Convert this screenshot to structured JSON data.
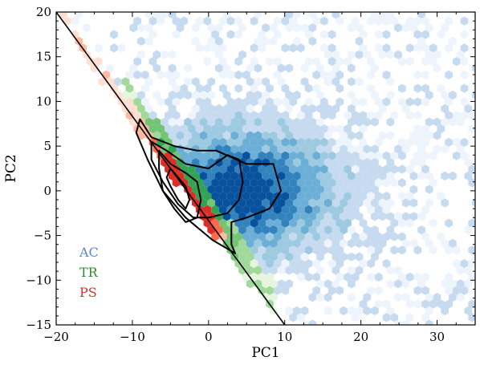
{
  "chart_data": {
    "type": "scatter",
    "xlabel": "PC1",
    "ylabel": "PC2",
    "xlim": [
      -20,
      35
    ],
    "ylim": [
      -15,
      20
    ],
    "xticks": [
      -20,
      -10,
      0,
      10,
      20,
      30
    ],
    "xtick_labels": [
      "−20",
      "−10",
      "0",
      "10",
      "20",
      "30"
    ],
    "yticks": [
      -15,
      -10,
      -5,
      0,
      5,
      10,
      15,
      20
    ],
    "ytick_labels": [
      "−15",
      "−10",
      "−5",
      "0",
      "5",
      "10",
      "15",
      "20"
    ],
    "grid": false,
    "legend_position": "lower-left",
    "legend": [
      {
        "label": "AC",
        "color": "#5a86d6"
      },
      {
        "label": "TR",
        "color": "#2f8a2f"
      },
      {
        "label": "PS",
        "color": "#e0302a"
      }
    ],
    "boundary_line": {
      "x": [
        -20,
        10
      ],
      "y": [
        20,
        -15
      ],
      "color": "#000000"
    },
    "series": [
      {
        "name": "AC",
        "kind": "hexbin-density",
        "colormap": "Blues",
        "colors": [
          "#eef4fb",
          "#c6dbef",
          "#9ecae1",
          "#6baed6",
          "#3182bd",
          "#08519c"
        ],
        "center": [
          5,
          0
        ],
        "spread": "x: -8 to 33, y: -12 to 19"
      },
      {
        "name": "TR",
        "kind": "hexbin-density",
        "colormap": "Greens",
        "colors": [
          "#e5f5e0",
          "#a1d99b",
          "#74c476",
          "#31a354"
        ],
        "center": [
          -3,
          0
        ],
        "spread": "narrow band along boundary, x: -10 to 9"
      },
      {
        "name": "PS",
        "kind": "hexbin-density",
        "colormap": "Reds",
        "colors": [
          "#fee0d2",
          "#fcbba1",
          "#fb6a4a",
          "#de2d26"
        ],
        "center": [
          -3,
          -1
        ],
        "spread": "narrow band along boundary, x: -20 to 2"
      }
    ],
    "contours": [
      {
        "level": "outer",
        "color": "#000000",
        "points": [
          [
            -9,
            8
          ],
          [
            -7.5,
            6
          ],
          [
            -4.5,
            5
          ],
          [
            -1.5,
            4.5
          ],
          [
            1,
            4.5
          ],
          [
            5,
            3
          ],
          [
            8.5,
            3
          ],
          [
            9.5,
            0
          ],
          [
            8,
            -2
          ],
          [
            5,
            -3
          ],
          [
            3,
            -3.5
          ],
          [
            3,
            -6
          ],
          [
            3.5,
            -7
          ],
          [
            0.5,
            -5.5
          ],
          [
            -3,
            -3
          ],
          [
            -6,
            0
          ],
          [
            -8,
            3.5
          ],
          [
            -9.5,
            6.5
          ]
        ]
      },
      {
        "level": "middle",
        "color": "#000000",
        "points": [
          [
            -7.5,
            5.5
          ],
          [
            -5.5,
            4.5
          ],
          [
            -3,
            3
          ],
          [
            0,
            2.5
          ],
          [
            2.5,
            4
          ],
          [
            4,
            3.5
          ],
          [
            4.5,
            1
          ],
          [
            4,
            -1
          ],
          [
            2.5,
            -2.5
          ],
          [
            0,
            -3
          ],
          [
            -2,
            -3
          ],
          [
            -4,
            -1.5
          ],
          [
            -6,
            1
          ],
          [
            -7.5,
            3.5
          ]
        ]
      },
      {
        "level": "inner",
        "color": "#000000",
        "points": [
          [
            -6.5,
            4.5
          ],
          [
            -5,
            3
          ],
          [
            -3,
            2
          ],
          [
            -1.5,
            1
          ],
          [
            -1,
            -1
          ],
          [
            -1.5,
            -3
          ],
          [
            -3,
            -3.5
          ],
          [
            -4.5,
            -2
          ],
          [
            -6,
            0
          ],
          [
            -6.5,
            2.5
          ]
        ]
      },
      {
        "level": "core",
        "color": "#000000",
        "points": [
          [
            -5,
            2.5
          ],
          [
            -4,
            1.5
          ],
          [
            -3,
            0.5
          ],
          [
            -2.5,
            -1
          ],
          [
            -3,
            -2
          ],
          [
            -4,
            -1
          ],
          [
            -5,
            0.5
          ],
          [
            -5.5,
            1.5
          ]
        ]
      }
    ]
  }
}
